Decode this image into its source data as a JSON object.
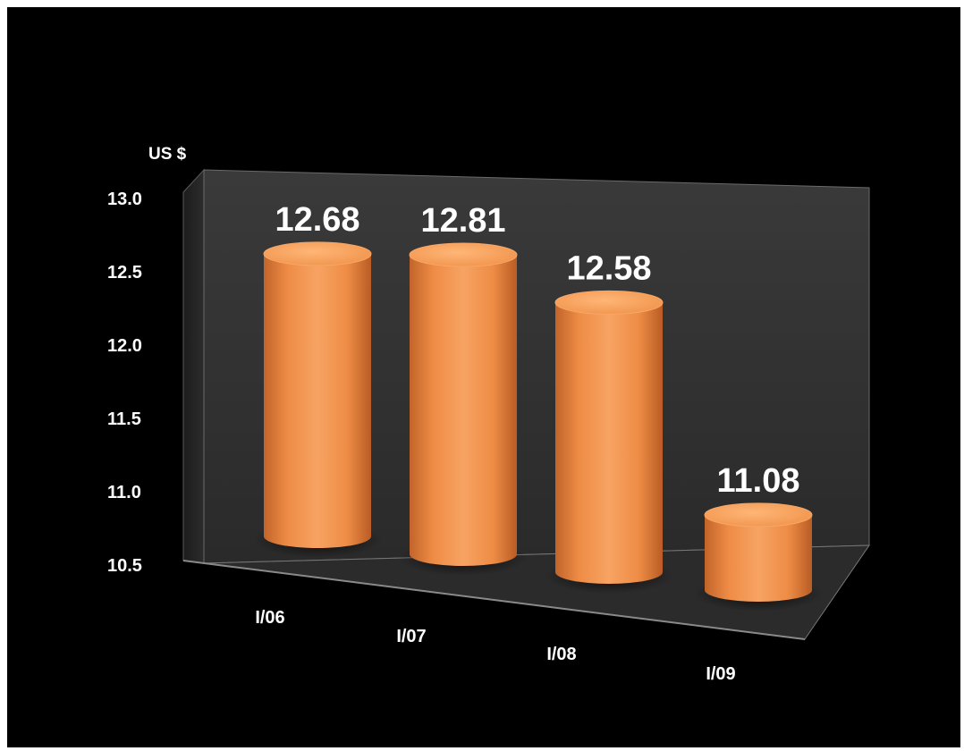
{
  "chart_data": {
    "type": "bar",
    "style": "3d-cylinder",
    "categories": [
      "I/06",
      "I/07",
      "I/08",
      "I/09"
    ],
    "values": [
      12.68,
      12.81,
      12.58,
      11.08
    ],
    "data_labels": [
      "12.68",
      "12.81",
      "12.58",
      "11.08"
    ],
    "y_ticks": [
      "13.0",
      "12.5",
      "12.0",
      "11.5",
      "11.0",
      "10.5"
    ],
    "y_tick_values": [
      13.0,
      12.5,
      12.0,
      11.5,
      11.0,
      10.5
    ],
    "ylim": [
      10.5,
      13.0
    ],
    "y_unit_label": "US $",
    "title": "",
    "xlabel": "",
    "ylabel": "",
    "grid": false,
    "legend": "none",
    "colors": {
      "background": "#000000",
      "bar": "#f0924a",
      "bar_top": "#f7a765",
      "back_wall": "#3b3b3b",
      "floor": "#2e2e2e",
      "text": "#ffffff"
    }
  }
}
